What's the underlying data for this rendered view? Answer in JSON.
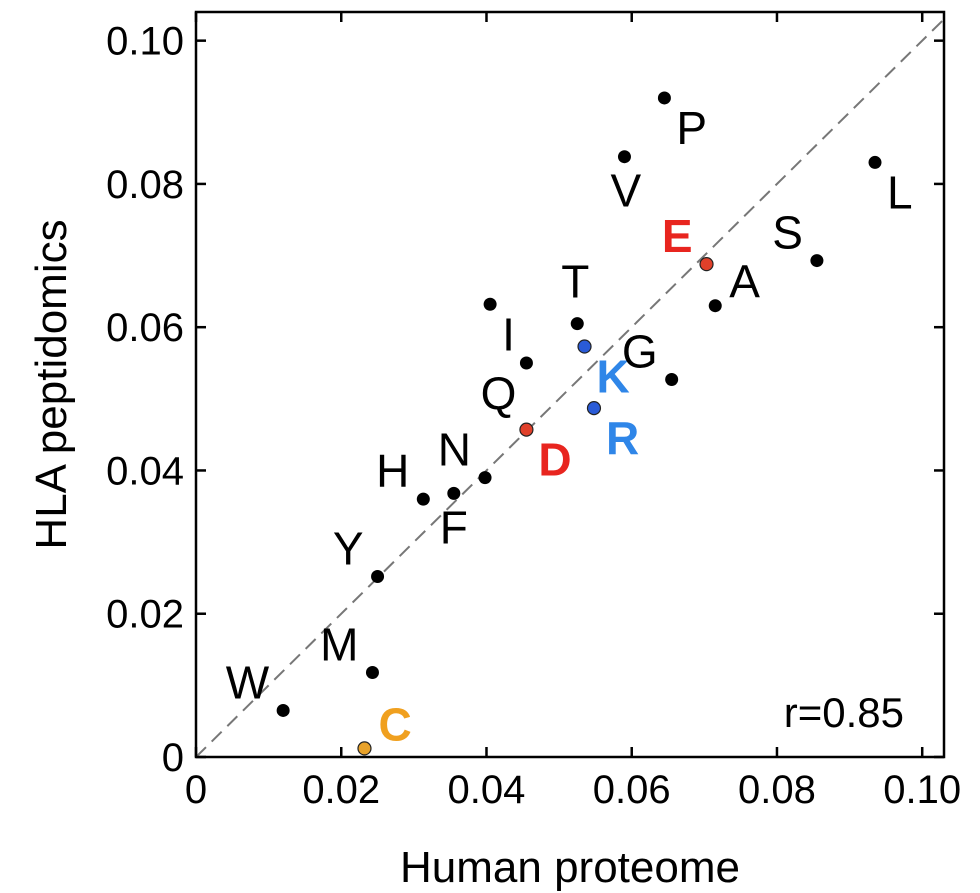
{
  "chart_data": {
    "type": "scatter",
    "xlabel": "Human proteome",
    "ylabel": "HLA peptidomics",
    "xlim": [
      0,
      0.103
    ],
    "ylim": [
      0,
      0.104
    ],
    "xticks": [
      {
        "value": 0,
        "label": "0"
      },
      {
        "value": 0.02,
        "label": "0.02"
      },
      {
        "value": 0.04,
        "label": "0.04"
      },
      {
        "value": 0.06,
        "label": "0.06"
      },
      {
        "value": 0.08,
        "label": "0.08"
      },
      {
        "value": 0.1,
        "label": "0.10"
      }
    ],
    "yticks": [
      {
        "value": 0,
        "label": "0"
      },
      {
        "value": 0.02,
        "label": "0.02"
      },
      {
        "value": 0.04,
        "label": "0.04"
      },
      {
        "value": 0.06,
        "label": "0.06"
      },
      {
        "value": 0.08,
        "label": "0.08"
      },
      {
        "value": 0.1,
        "label": "0.10"
      }
    ],
    "reference_line": "y = x",
    "annotation": "r=0.85",
    "points": [
      {
        "label": "P",
        "x": 0.0645,
        "y": 0.092,
        "color": "#000000",
        "highlight": false,
        "label_pos": "lower-right"
      },
      {
        "label": "V",
        "x": 0.059,
        "y": 0.0838,
        "color": "#000000",
        "highlight": false,
        "label_pos": "below"
      },
      {
        "label": "L",
        "x": 0.0935,
        "y": 0.083,
        "color": "#000000",
        "highlight": false,
        "label_pos": "lower-right"
      },
      {
        "label": "E",
        "x": 0.0703,
        "y": 0.0688,
        "color": "#e0402a",
        "highlight": true,
        "label_color": "#e8251f",
        "label_pos": "upper-left"
      },
      {
        "label": "S",
        "x": 0.0855,
        "y": 0.0693,
        "color": "#000000",
        "highlight": false,
        "label_pos": "upper-left"
      },
      {
        "label": "A",
        "x": 0.0715,
        "y": 0.063,
        "color": "#000000",
        "highlight": false,
        "label_pos": "upper-right"
      },
      {
        "label": "I",
        "x": 0.0405,
        "y": 0.0632,
        "color": "#000000",
        "highlight": false,
        "label_pos": "lower-right"
      },
      {
        "label": "T",
        "x": 0.0525,
        "y": 0.0605,
        "color": "#000000",
        "highlight": false,
        "label_pos": "above"
      },
      {
        "label": "K",
        "x": 0.0535,
        "y": 0.0573,
        "color": "#2a5bd7",
        "highlight": true,
        "label_color": "#2f86e8",
        "label_pos": "lower-right"
      },
      {
        "label": "G",
        "x": 0.0655,
        "y": 0.0527,
        "color": "#000000",
        "highlight": false,
        "label_pos": "upper-left"
      },
      {
        "label": "Q",
        "x": 0.0455,
        "y": 0.055,
        "color": "#000000",
        "highlight": false,
        "label_pos": "lower-left"
      },
      {
        "label": "R",
        "x": 0.0548,
        "y": 0.0487,
        "color": "#2a5bd7",
        "highlight": true,
        "label_color": "#2f86e8",
        "label_pos": "lower-right"
      },
      {
        "label": "D",
        "x": 0.0455,
        "y": 0.0457,
        "color": "#e0402a",
        "highlight": true,
        "label_color": "#e8251f",
        "label_pos": "lower-right"
      },
      {
        "label": "N",
        "x": 0.0398,
        "y": 0.039,
        "color": "#000000",
        "highlight": false,
        "label_pos": "upper-left"
      },
      {
        "label": "H",
        "x": 0.0313,
        "y": 0.036,
        "color": "#000000",
        "highlight": false,
        "label_pos": "upper-left"
      },
      {
        "label": "F",
        "x": 0.0355,
        "y": 0.0368,
        "color": "#000000",
        "highlight": false,
        "label_pos": "below"
      },
      {
        "label": "Y",
        "x": 0.025,
        "y": 0.0252,
        "color": "#000000",
        "highlight": false,
        "label_pos": "upper-left"
      },
      {
        "label": "M",
        "x": 0.0243,
        "y": 0.0118,
        "color": "#000000",
        "highlight": false,
        "label_pos": "upper-left"
      },
      {
        "label": "W",
        "x": 0.012,
        "y": 0.0065,
        "color": "#000000",
        "highlight": false,
        "label_pos": "upper-left"
      },
      {
        "label": "C",
        "x": 0.0232,
        "y": 0.0012,
        "color": "#e8a22a",
        "highlight": true,
        "label_color": "#f0a01f",
        "label_pos": "upper-right"
      }
    ]
  }
}
